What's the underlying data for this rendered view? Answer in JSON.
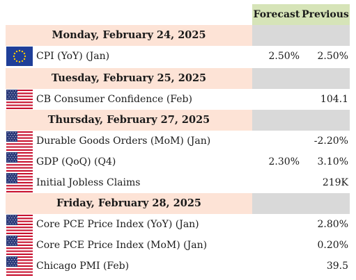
{
  "header": {
    "forecast_label": "Forecast",
    "previous_label": "Previous"
  },
  "days": [
    {
      "title": "Monday, February 24, 2025",
      "events": [
        {
          "name": "CPI (YoY) (Jan)",
          "flag": "eu-flag-icon",
          "forecast": "2.50%",
          "previous": "2.50%"
        }
      ]
    },
    {
      "title": "Tuesday, February 25, 2025",
      "events": [
        {
          "name": "CB Consumer Confidence (Feb)",
          "flag": "us-flag-icon",
          "forecast": "",
          "previous": "104.1"
        }
      ]
    },
    {
      "title": "Thursday, February 27, 2025",
      "events": [
        {
          "name": "Durable Goods Orders (MoM) (Jan)",
          "flag": "us-flag-icon",
          "forecast": "",
          "previous": "-2.20%"
        },
        {
          "name": "GDP (QoQ) (Q4)",
          "flag": "us-flag-icon",
          "forecast": "2.30%",
          "previous": "3.10%"
        },
        {
          "name": "Initial Jobless Claims",
          "flag": "us-flag-icon",
          "forecast": "",
          "previous": "219K"
        }
      ]
    },
    {
      "title": "Friday, February 28, 2025",
      "events": [
        {
          "name": "Core PCE Price Index (YoY) (Jan)",
          "flag": "us-flag-icon",
          "forecast": "",
          "previous": "2.80%"
        },
        {
          "name": "Core PCE Price Index (MoM) (Jan)",
          "flag": "us-flag-icon",
          "forecast": "",
          "previous": "0.20%"
        },
        {
          "name": "Chicago PMI (Feb)",
          "flag": "us-flag-icon",
          "forecast": "",
          "previous": "39.5"
        }
      ]
    }
  ],
  "colors": {
    "header_bg": "#d6e4b8",
    "day_bg": "#fde3d6",
    "day_side_bg": "#d9d9d9"
  }
}
